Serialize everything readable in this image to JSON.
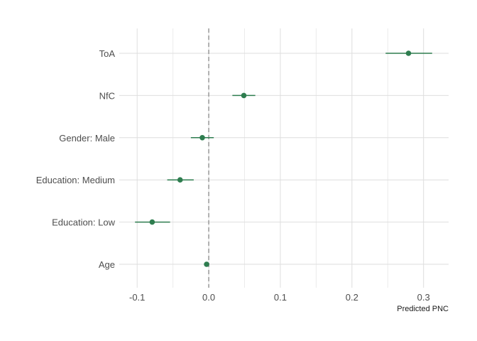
{
  "chart_data": {
    "type": "forest",
    "title": "",
    "xlabel": "Predicted PNC",
    "ylabel": "",
    "xlim": [
      -0.125,
      0.335
    ],
    "x_ticks": [
      -0.1,
      0.0,
      0.1,
      0.2,
      0.3
    ],
    "x_tick_labels": [
      "-0.1",
      "0.0",
      "0.1",
      "0.2",
      "0.3"
    ],
    "reference_line": 0.0,
    "grid": true,
    "point_color": "#2e7d4f",
    "reference_color": "#9e9e9e",
    "categories": [
      "ToA",
      "NfC",
      "Gender: Male",
      "Education: Medium",
      "Education: Low",
      "Age"
    ],
    "estimates": [
      0.279,
      0.049,
      -0.009,
      -0.04,
      -0.079,
      -0.003
    ],
    "lower": [
      0.247,
      0.033,
      -0.025,
      -0.058,
      -0.103,
      -0.004
    ],
    "upper": [
      0.312,
      0.065,
      0.007,
      -0.021,
      -0.054,
      -0.001
    ]
  }
}
